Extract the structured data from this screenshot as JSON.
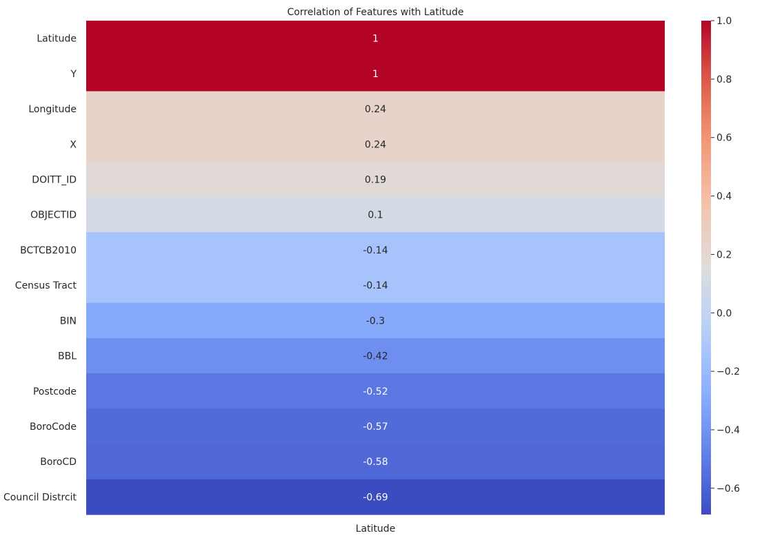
{
  "chart_data": {
    "type": "heatmap",
    "title": "Correlation of Features with Latitude",
    "columns": [
      "Latitude"
    ],
    "rows": [
      "Latitude",
      "Y",
      "Longitude",
      "X",
      "DOITT_ID",
      "OBJECTID",
      "BCTCB2010",
      "Census Tract",
      "BIN",
      "BBL",
      "Postcode",
      "BoroCode",
      "BoroCD",
      "Council Distrcit"
    ],
    "values": [
      1.0,
      1.0,
      0.24,
      0.24,
      0.19,
      0.1,
      -0.14,
      -0.14,
      -0.3,
      -0.42,
      -0.52,
      -0.57,
      -0.58,
      -0.69
    ],
    "annotations": [
      "1",
      "1",
      "0.24",
      "0.24",
      "0.19",
      "0.1",
      "-0.14",
      "-0.14",
      "-0.3",
      "-0.42",
      "-0.52",
      "-0.57",
      "-0.58",
      "-0.69"
    ],
    "colorbar": {
      "colormap": "coolwarm",
      "min": -0.69,
      "max": 1.0,
      "ticks": [
        1.0,
        0.8,
        0.6,
        0.4,
        0.2,
        0.0,
        -0.2,
        -0.4,
        -0.6
      ],
      "tick_labels": [
        "1.0",
        "0.8",
        "0.6",
        "0.4",
        "0.2",
        "0.0",
        "−0.2",
        "−0.4",
        "−0.6"
      ]
    },
    "grid": false
  }
}
